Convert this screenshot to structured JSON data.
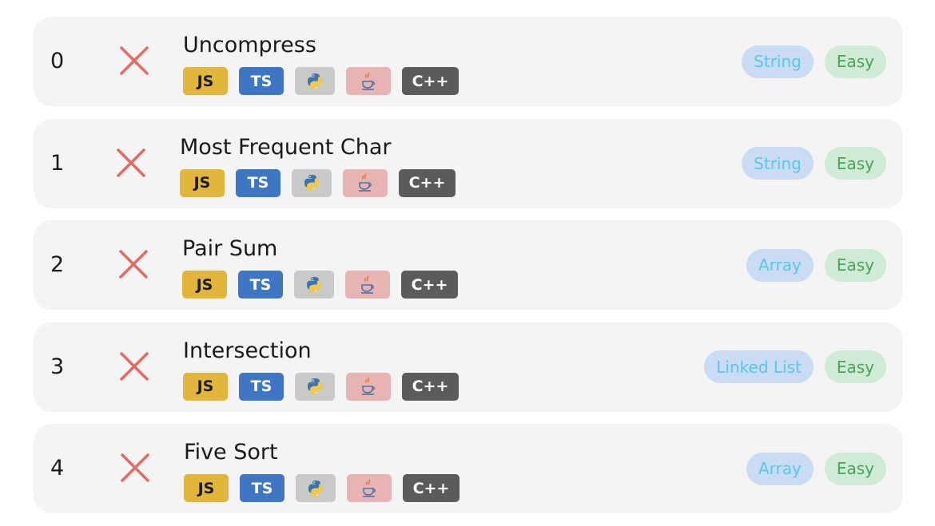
{
  "colors": {
    "row_bg": "#f4f4f4",
    "fail_mark": "#e46b5f",
    "js_bg": "#e2b63b",
    "ts_bg": "#3e76c4",
    "py_bg": "#c9c9c9",
    "java_bg": "#e8b3b3",
    "cpp_bg": "#5b5b5b",
    "topic_bg": "#c9dcf3",
    "topic_text": "#5ac6e8",
    "difficulty_bg": "#cfead5",
    "difficulty_text": "#45a45a"
  },
  "languages": {
    "js": "JS",
    "ts": "TS",
    "python_icon": "python-logo-icon",
    "java_icon": "java-coffee-cup-icon",
    "cpp": "C++"
  },
  "problems": [
    {
      "index": "0",
      "status_icon": "cross-icon",
      "title": "Uncompress",
      "topic": "String",
      "difficulty": "Easy"
    },
    {
      "index": "1",
      "status_icon": "cross-icon",
      "title": "Most Frequent Char",
      "topic": "String",
      "difficulty": "Easy"
    },
    {
      "index": "2",
      "status_icon": "cross-icon",
      "title": "Pair Sum",
      "topic": "Array",
      "difficulty": "Easy"
    },
    {
      "index": "3",
      "status_icon": "cross-icon",
      "title": "Intersection",
      "topic": "Linked List",
      "difficulty": "Easy"
    },
    {
      "index": "4",
      "status_icon": "cross-icon",
      "title": "Five Sort",
      "topic": "Array",
      "difficulty": "Easy"
    }
  ]
}
